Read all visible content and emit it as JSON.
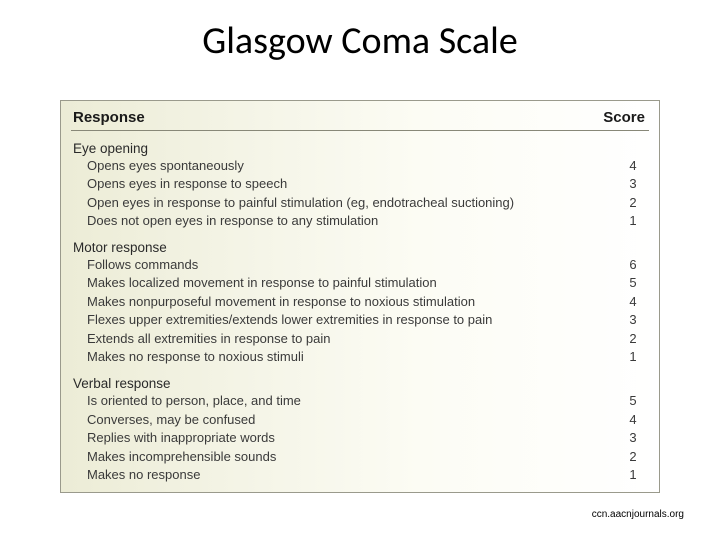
{
  "title": "Glasgow Coma Scale",
  "header": {
    "response": "Response",
    "score": "Score"
  },
  "sections": [
    {
      "name": "Eye opening",
      "rows": [
        {
          "label": "Opens eyes spontaneously",
          "score": "4"
        },
        {
          "label": "Opens eyes in response to speech",
          "score": "3"
        },
        {
          "label": "Open eyes in response to painful stimulation (eg, endotracheal suctioning)",
          "score": "2"
        },
        {
          "label": "Does not open eyes in response to any stimulation",
          "score": "1"
        }
      ]
    },
    {
      "name": "Motor response",
      "rows": [
        {
          "label": "Follows commands",
          "score": "6"
        },
        {
          "label": "Makes localized movement in response to painful stimulation",
          "score": "5"
        },
        {
          "label": "Makes nonpurposeful movement in response to noxious stimulation",
          "score": "4"
        },
        {
          "label": "Flexes upper extremities/extends lower extremities in response to pain",
          "score": "3"
        },
        {
          "label": "Extends all extremities in response to pain",
          "score": "2"
        },
        {
          "label": "Makes no response to noxious stimuli",
          "score": "1"
        }
      ]
    },
    {
      "name": "Verbal response",
      "rows": [
        {
          "label": "Is oriented to person, place, and time",
          "score": "5"
        },
        {
          "label": "Converses, may be confused",
          "score": "4"
        },
        {
          "label": "Replies with inappropriate words",
          "score": "3"
        },
        {
          "label": "Makes incomprehensible sounds",
          "score": "2"
        },
        {
          "label": "Makes no response",
          "score": "1"
        }
      ]
    }
  ],
  "citation": "ccn.aacnjournals.org",
  "style": {
    "title_fontsize": 38,
    "title_color": "#000000",
    "table_border_color": "#9a9a8c",
    "table_bg_gradient": [
      "#ececd6",
      "#f4f4e6",
      "#fcfcf4",
      "#ffffff"
    ],
    "header_fontsize": 15,
    "header_weight": "bold",
    "header_border_color": "#888878",
    "section_title_fontsize": 13.5,
    "row_fontsize": 13,
    "row_color": "#3a3a3a",
    "citation_fontsize": 10,
    "font_family": "Arial"
  }
}
